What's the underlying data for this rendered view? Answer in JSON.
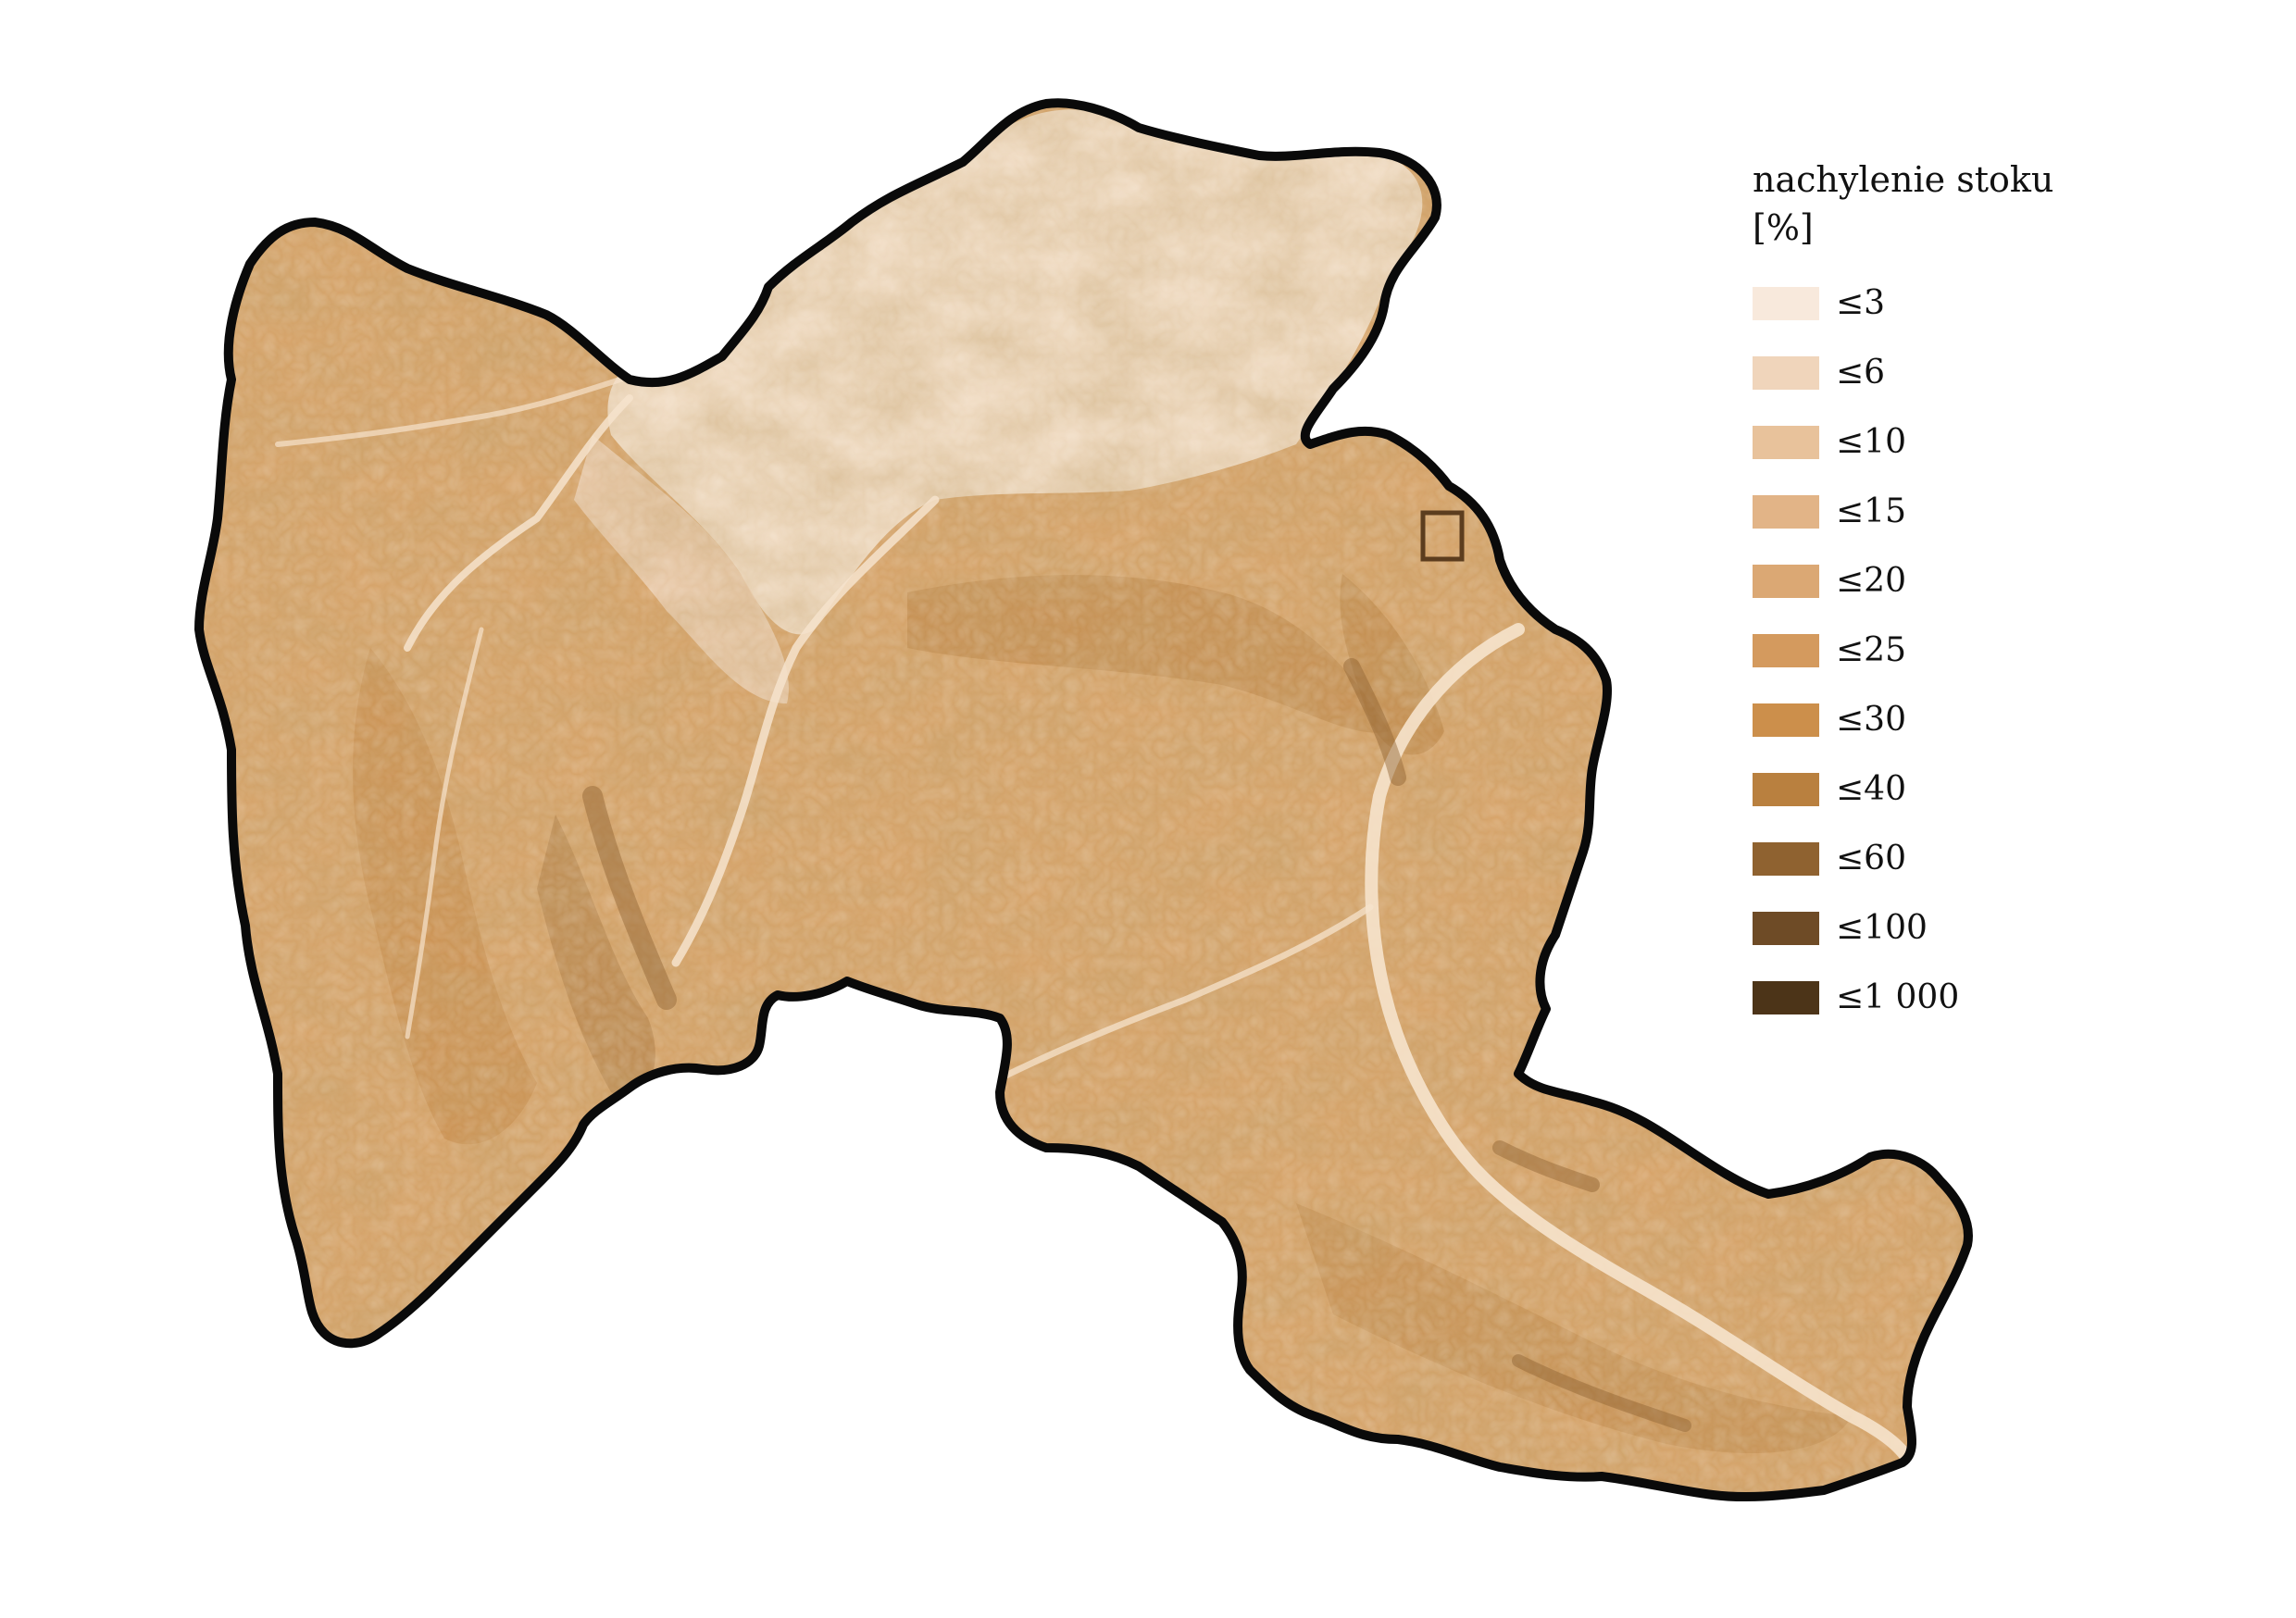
{
  "legend": {
    "title_line1": "nachylenie stoku",
    "title_line2": "[%]",
    "classes": [
      {
        "label": "≤3",
        "color": "#f8e9dc"
      },
      {
        "label": "≤6",
        "color": "#f0d5bb"
      },
      {
        "label": "≤10",
        "color": "#e8c29b"
      },
      {
        "label": "≤15",
        "color": "#e2b487"
      },
      {
        "label": "≤20",
        "color": "#dba874"
      },
      {
        "label": "≤25",
        "color": "#d49a5e"
      },
      {
        "label": "≤30",
        "color": "#cc8f4b"
      },
      {
        "label": "≤40",
        "color": "#b9803f"
      },
      {
        "label": "≤60",
        "color": "#8f6230"
      },
      {
        "label": "≤100",
        "color": "#6e4b26"
      },
      {
        "label": "≤1 000",
        "color": "#4c3418"
      }
    ]
  },
  "map": {
    "outline_color": "#0a0a0a",
    "base_slope_color": "#d8a46a",
    "flat_area_color": "#f5e2cd",
    "steep_color": "#a8733a"
  }
}
